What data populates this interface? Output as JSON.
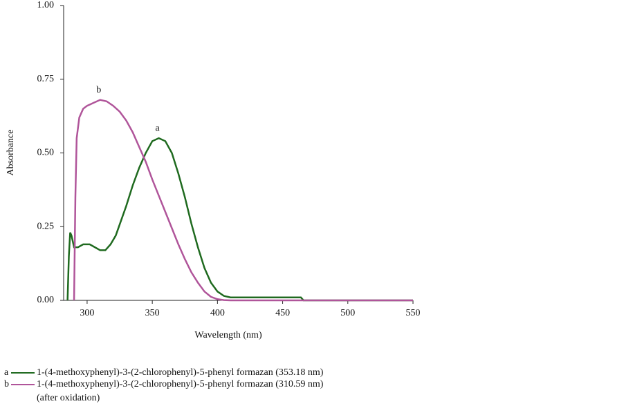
{
  "chart_data": {
    "type": "line",
    "x_label": "Wavelength (nm)",
    "y_label": "Absorbance",
    "xlim": [
      282,
      550
    ],
    "xticks": [
      300,
      350,
      400,
      450,
      500,
      550
    ],
    "ylim": [
      0,
      1
    ],
    "yticks": [
      {
        "value": 0,
        "label": "0.00"
      },
      {
        "value": 0.25,
        "label": "0.25"
      },
      {
        "value": 0.5,
        "label": "0.50"
      },
      {
        "value": 0.75,
        "label": "0.75"
      },
      {
        "value": 1,
        "label": "1.00"
      }
    ],
    "series": [
      {
        "label": "a",
        "name": "1-(4-methoxyphenyl)-3-(2-chlorophenyl)-5-phenyl formazan (353.18 nm)",
        "color": "#1f6a1f",
        "x": [
          285,
          286,
          287,
          288,
          290,
          293,
          297,
          302,
          306,
          310,
          314,
          318,
          322,
          326,
          330,
          335,
          340,
          345,
          350,
          355,
          360,
          365,
          370,
          375,
          380,
          385,
          390,
          395,
          400,
          405,
          410,
          415,
          464,
          466,
          550
        ],
        "values": [
          0,
          0.15,
          0.23,
          0.22,
          0.18,
          0.18,
          0.19,
          0.19,
          0.18,
          0.17,
          0.17,
          0.19,
          0.22,
          0.27,
          0.32,
          0.39,
          0.45,
          0.5,
          0.54,
          0.55,
          0.54,
          0.5,
          0.43,
          0.35,
          0.26,
          0.18,
          0.11,
          0.06,
          0.03,
          0.015,
          0.01,
          0.01,
          0.01,
          0,
          0
        ]
      },
      {
        "label": "b",
        "name": "1-(4-methoxyphenyl)-3-(2-chlorophenyl)-5-phenyl formazan (310.59 nm)",
        "legend_note": "(after oxidation)",
        "color": "#b0559a",
        "x": [
          290,
          291,
          292,
          294,
          297,
          300,
          305,
          310,
          315,
          320,
          325,
          330,
          335,
          340,
          345,
          350,
          355,
          360,
          365,
          370,
          375,
          380,
          385,
          390,
          395,
          400,
          405,
          410,
          550
        ],
        "values": [
          0,
          0.35,
          0.55,
          0.62,
          0.65,
          0.66,
          0.67,
          0.68,
          0.675,
          0.66,
          0.64,
          0.61,
          0.57,
          0.52,
          0.47,
          0.41,
          0.355,
          0.3,
          0.245,
          0.19,
          0.14,
          0.095,
          0.06,
          0.03,
          0.012,
          0.004,
          0.001,
          0,
          0
        ]
      }
    ]
  }
}
